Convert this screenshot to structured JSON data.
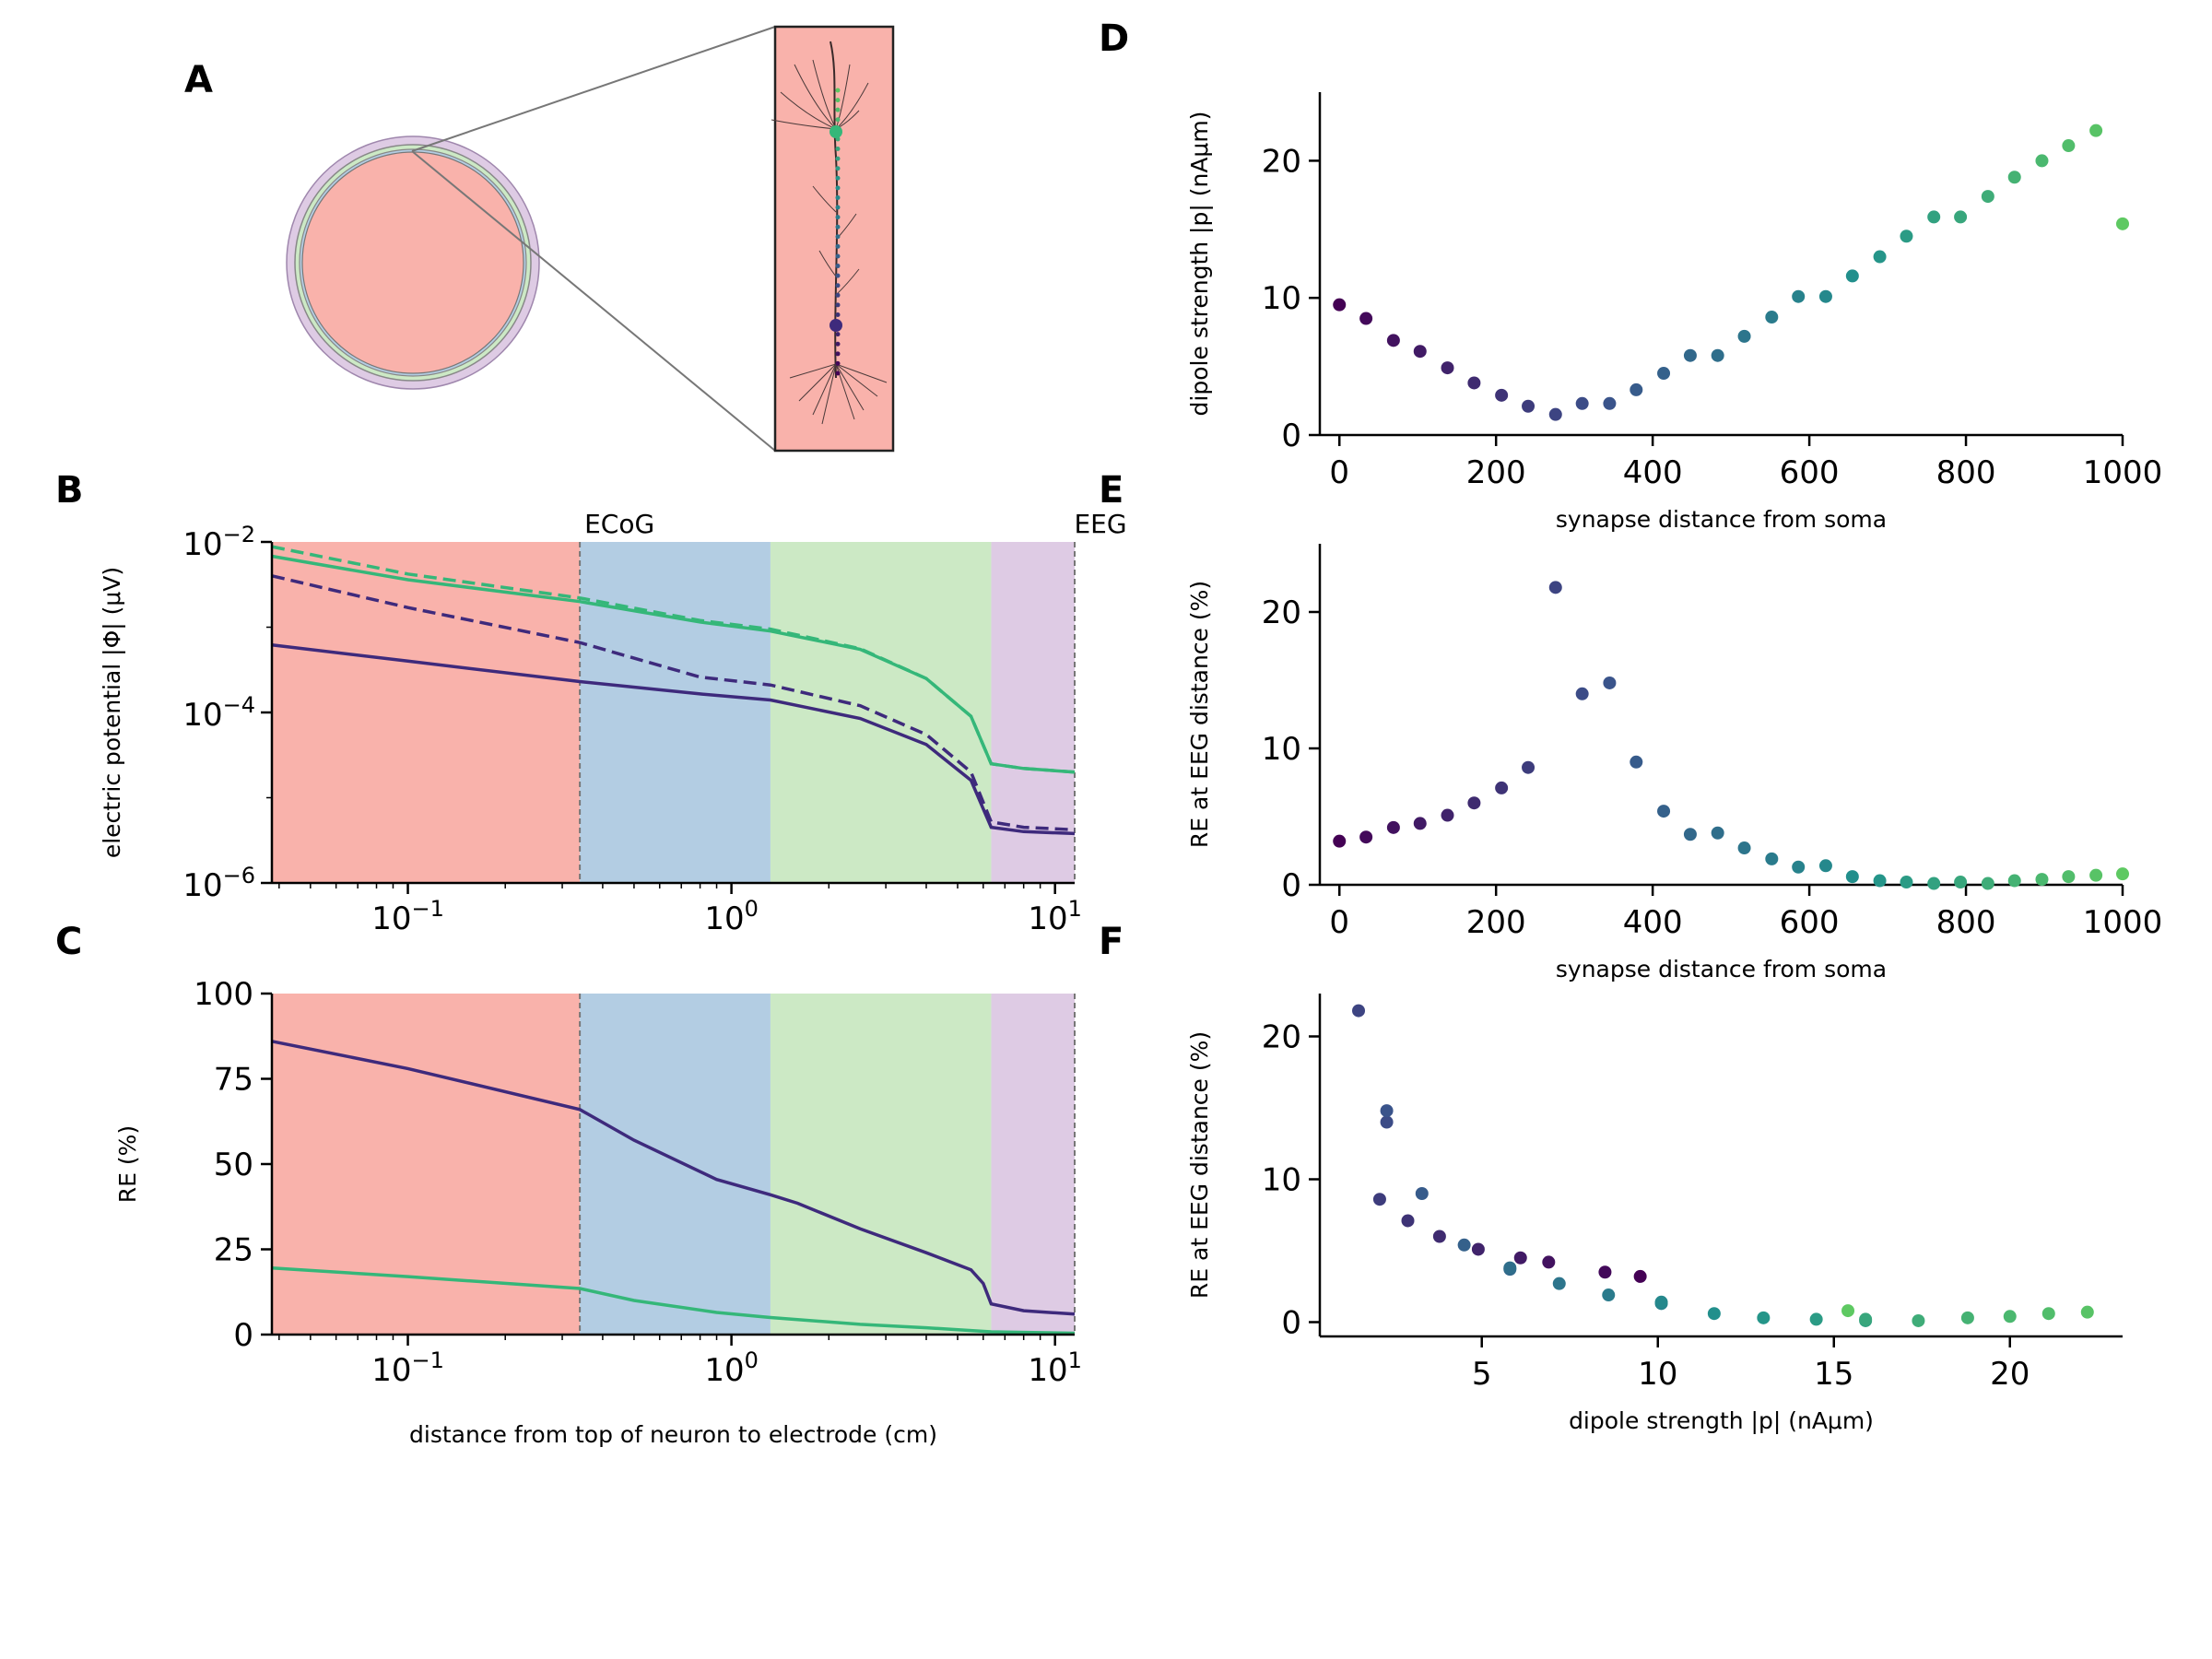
{
  "colors": {
    "brain": "#f9b2ab",
    "csf": "#b3cde3",
    "skull": "#cce9c5",
    "scalp": "#decbe4",
    "series_top": "#35b779",
    "series_bottom": "#3e2a7c",
    "colormap": [
      "#440154",
      "#3b528b",
      "#21918c",
      "#5ec962"
    ]
  },
  "panels": {
    "A": {
      "label": "A"
    },
    "B": {
      "label": "B",
      "ylabel": "electric potential |Φ| (μV)",
      "region_labels": [
        "ECoG",
        "EEG"
      ],
      "ytick_labels": [
        "10",
        "10",
        "10"
      ],
      "ytick_exps": [
        "−2",
        "−4",
        "−6"
      ],
      "xtick_labels": [
        "10",
        "10",
        "10"
      ],
      "xtick_exps": [
        "−1",
        "0",
        "1"
      ]
    },
    "C": {
      "label": "C",
      "ylabel": "RE (%)",
      "xlabel": "distance from top of neuron to electrode (cm)",
      "ytick_labels": [
        "0",
        "25",
        "50",
        "75",
        "100"
      ],
      "xtick_labels": [
        "10",
        "10",
        "10"
      ],
      "xtick_exps": [
        "−1",
        "0",
        "1"
      ]
    },
    "D": {
      "label": "D",
      "ylabel": "dipole strength |p| (nAμm)",
      "xlabel": "synapse distance from soma",
      "ytick_labels": [
        "0",
        "10",
        "20"
      ],
      "xtick_labels": [
        "0",
        "200",
        "400",
        "600",
        "800",
        "1000"
      ]
    },
    "E": {
      "label": "E",
      "ylabel": "RE at EEG distance (%)",
      "xlabel": "synapse distance from soma",
      "ytick_labels": [
        "0",
        "10",
        "20"
      ],
      "xtick_labels": [
        "0",
        "200",
        "400",
        "600",
        "800",
        "1000"
      ]
    },
    "F": {
      "label": "F",
      "ylabel": "RE at EEG distance (%)",
      "xlabel": "dipole strength |p| (nAμm)",
      "ytick_labels": [
        "0",
        "10",
        "20"
      ],
      "xtick_labels": [
        "5",
        "10",
        "15",
        "20"
      ]
    }
  },
  "chart_data": [
    {
      "panel": "B",
      "type": "line",
      "xscale": "log",
      "yscale": "log",
      "xlim": [
        0.038,
        11.5
      ],
      "ylim": [
        1e-06,
        0.01
      ],
      "region_bounds_cm": [
        0.038,
        0.34,
        1.32,
        6.35,
        11.5
      ],
      "region_labels": [
        "ECoG",
        "EEG"
      ],
      "series": [
        {
          "color_key": "series_top",
          "style": "solid",
          "points": [
            [
              0.038,
              0.0068
            ],
            [
              0.1,
              0.0036
            ],
            [
              0.34,
              0.002
            ],
            [
              0.8,
              0.00115
            ],
            [
              1.32,
              0.0009
            ],
            [
              2.5,
              0.00055
            ],
            [
              4.0,
              0.00025
            ],
            [
              5.5,
              9e-05
            ],
            [
              6.35,
              2.5e-05
            ],
            [
              8,
              2.2e-05
            ],
            [
              11.5,
              2e-05
            ]
          ]
        },
        {
          "color_key": "series_top",
          "style": "dashed",
          "points": [
            [
              0.038,
              0.0088
            ],
            [
              0.1,
              0.0042
            ],
            [
              0.34,
              0.0022
            ],
            [
              0.8,
              0.0012
            ],
            [
              1.32,
              0.00095
            ],
            [
              2.5,
              0.00056
            ],
            [
              4.0,
              0.00025
            ],
            [
              5.5,
              9e-05
            ],
            [
              6.35,
              2.5e-05
            ],
            [
              8,
              2.2e-05
            ],
            [
              11.5,
              2e-05
            ]
          ]
        },
        {
          "color_key": "series_bottom",
          "style": "dashed",
          "points": [
            [
              0.038,
              0.004
            ],
            [
              0.1,
              0.0017
            ],
            [
              0.34,
              0.00066
            ],
            [
              0.8,
              0.00026
            ],
            [
              1.32,
              0.00021
            ],
            [
              2.5,
              0.00012
            ],
            [
              4.0,
              5.5e-05
            ],
            [
              5.5,
              2e-05
            ],
            [
              6.35,
              5.2e-06
            ],
            [
              8,
              4.5e-06
            ],
            [
              11.5,
              4.2e-06
            ]
          ]
        },
        {
          "color_key": "series_bottom",
          "style": "solid",
          "points": [
            [
              0.038,
              0.00062
            ],
            [
              0.1,
              0.0004
            ],
            [
              0.34,
              0.00023
            ],
            [
              0.8,
              0.000165
            ],
            [
              1.32,
              0.00014
            ],
            [
              2.5,
              8.5e-05
            ],
            [
              4.0,
              4.2e-05
            ],
            [
              5.5,
              1.6e-05
            ],
            [
              6.35,
              4.5e-06
            ],
            [
              8,
              4e-06
            ],
            [
              11.5,
              3.8e-06
            ]
          ]
        }
      ]
    },
    {
      "panel": "C",
      "type": "line",
      "xscale": "log",
      "xlim": [
        0.038,
        11.5
      ],
      "ylim": [
        0,
        100
      ],
      "region_bounds_cm": [
        0.038,
        0.34,
        1.32,
        6.35,
        11.5
      ],
      "series": [
        {
          "color_key": "series_bottom",
          "style": "solid",
          "points": [
            [
              0.038,
              86
            ],
            [
              0.1,
              78
            ],
            [
              0.34,
              66
            ],
            [
              0.5,
              57
            ],
            [
              0.9,
              45.5
            ],
            [
              1.32,
              41
            ],
            [
              1.6,
              38.5
            ],
            [
              2.5,
              31
            ],
            [
              4.0,
              24
            ],
            [
              5.5,
              19
            ],
            [
              6.0,
              15
            ],
            [
              6.35,
              9
            ],
            [
              8,
              7
            ],
            [
              11.5,
              6
            ]
          ]
        },
        {
          "color_key": "series_top",
          "style": "solid",
          "points": [
            [
              0.038,
              19.5
            ],
            [
              0.1,
              17
            ],
            [
              0.34,
              13.5
            ],
            [
              0.5,
              10
            ],
            [
              0.9,
              6.5
            ],
            [
              1.32,
              5
            ],
            [
              2.5,
              3
            ],
            [
              4.0,
              2
            ],
            [
              6.35,
              0.8
            ],
            [
              11.5,
              0.4
            ]
          ]
        }
      ]
    },
    {
      "panel": "D",
      "type": "scatter",
      "xlim": [
        -25,
        1000
      ],
      "ylim": [
        0,
        25
      ],
      "x": [
        0,
        34,
        69,
        103,
        138,
        172,
        207,
        241,
        276,
        310,
        345,
        379,
        414,
        448,
        483,
        517,
        552,
        586,
        621,
        655,
        690,
        724,
        759,
        793,
        828,
        862,
        897,
        931,
        966,
        1000
      ],
      "y": [
        9.5,
        8.5,
        6.9,
        6.1,
        4.9,
        3.8,
        2.9,
        2.1,
        1.5,
        2.3,
        2.3,
        3.3,
        4.5,
        5.8,
        5.8,
        7.2,
        8.6,
        10.1,
        10.1,
        11.6,
        13.0,
        14.5,
        15.9,
        15.9,
        17.4,
        18.8,
        20.0,
        21.1,
        22.2,
        15.4
      ]
    },
    {
      "panel": "E",
      "type": "scatter",
      "xlim": [
        -25,
        1000
      ],
      "ylim": [
        0,
        25
      ],
      "x": [
        0,
        34,
        69,
        103,
        138,
        172,
        207,
        241,
        276,
        310,
        345,
        379,
        414,
        448,
        483,
        517,
        552,
        586,
        621,
        655,
        690,
        724,
        759,
        793,
        828,
        862,
        897,
        931,
        966,
        1000
      ],
      "y": [
        3.2,
        3.5,
        4.2,
        4.5,
        5.1,
        6.0,
        7.1,
        8.6,
        21.8,
        14.0,
        14.8,
        9.0,
        5.4,
        3.7,
        3.8,
        2.7,
        1.9,
        1.3,
        1.4,
        0.6,
        0.3,
        0.2,
        0.1,
        0.2,
        0.1,
        0.3,
        0.4,
        0.6,
        0.7,
        0.8
      ]
    },
    {
      "panel": "F",
      "type": "scatter",
      "xlim": [
        0.4,
        23.2
      ],
      "ylim": [
        -1,
        23
      ],
      "x": [
        9.5,
        8.5,
        6.9,
        6.1,
        4.9,
        3.8,
        2.9,
        2.1,
        1.5,
        2.3,
        2.3,
        3.3,
        4.5,
        5.8,
        5.8,
        7.2,
        8.6,
        10.1,
        10.1,
        11.6,
        13.0,
        14.5,
        15.9,
        15.9,
        17.4,
        18.8,
        20.0,
        21.1,
        22.2,
        15.4
      ],
      "y": [
        3.2,
        3.5,
        4.2,
        4.5,
        5.1,
        6.0,
        7.1,
        8.6,
        21.8,
        14.0,
        14.8,
        9.0,
        5.4,
        3.7,
        3.8,
        2.7,
        1.9,
        1.3,
        1.4,
        0.6,
        0.3,
        0.2,
        0.1,
        0.2,
        0.1,
        0.3,
        0.4,
        0.6,
        0.7,
        0.8
      ]
    }
  ]
}
